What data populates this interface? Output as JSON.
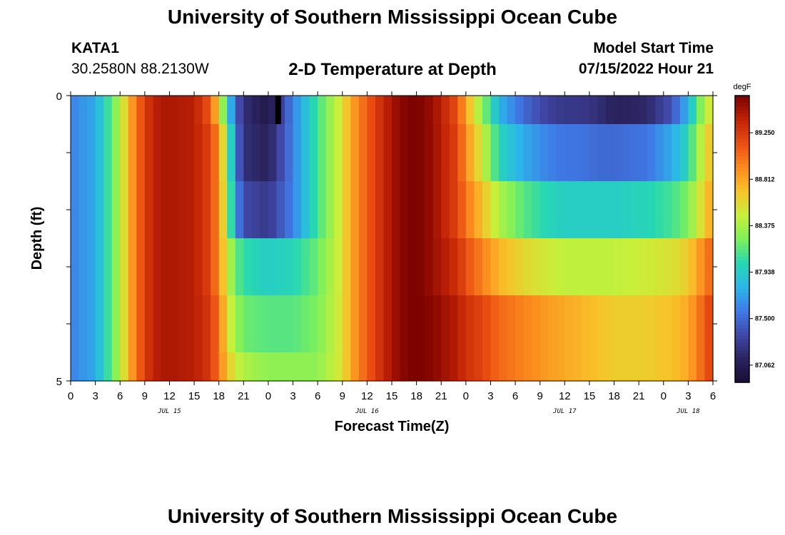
{
  "header": {
    "title": "University of Southern Mississippi Ocean Cube",
    "station": "KATA1",
    "coords": "30.2580N  88.2130W",
    "plot_title": "2-D Temperature at Depth",
    "model_start_label": "Model Start Time",
    "model_start_value": "07/15/2022 Hour 21"
  },
  "footer": {
    "title": "University of Southern Mississippi Ocean Cube"
  },
  "chart_data": {
    "type": "heatmap",
    "xlabel": "Forecast Time(Z)",
    "ylabel": "Depth (ft)",
    "x_tick_labels": [
      "0",
      "3",
      "6",
      "9",
      "12",
      "15",
      "18",
      "21",
      "0",
      "3",
      "6",
      "9",
      "12",
      "15",
      "18",
      "21",
      "0",
      "3",
      "6",
      "9",
      "12",
      "15",
      "18",
      "21",
      "0",
      "3",
      "6"
    ],
    "date_labels": [
      {
        "text": "JUL 15",
        "hour": 12
      },
      {
        "text": "JUL 16",
        "hour": 36
      },
      {
        "text": "JUL 17",
        "hour": 60
      },
      {
        "text": "JUL 18",
        "hour": 75
      }
    ],
    "x_range": [
      0,
      78
    ],
    "y_tick_labels": [
      "0",
      "5"
    ],
    "y_range": [
      0,
      5
    ],
    "depth_levels": [
      0,
      1,
      2,
      3,
      4,
      5
    ],
    "colorbar": {
      "unit": "degF",
      "ticks": [
        "89.250",
        "88.812",
        "88.375",
        "87.938",
        "87.500",
        "87.062"
      ],
      "tick_values": [
        89.25,
        88.812,
        88.375,
        87.938,
        87.5,
        87.062
      ],
      "range": [
        86.9,
        89.6
      ]
    },
    "colormap": [
      "#1a0d35",
      "#2b2460",
      "#4148a8",
      "#3f7be8",
      "#2bb7e8",
      "#27d8b2",
      "#7ff05a",
      "#c8f03a",
      "#f8c22a",
      "#fb8a1e",
      "#ea4e12",
      "#c02206",
      "#7a0000"
    ],
    "profiles": [
      {
        "depth": 0,
        "hours": [
          0,
          3,
          6,
          7,
          8,
          9,
          11,
          15,
          17,
          18,
          19,
          20,
          21,
          24,
          27,
          30,
          33,
          34,
          36,
          38,
          40,
          42,
          44,
          47,
          48,
          50,
          52,
          55,
          58,
          60,
          62,
          64,
          66,
          70,
          73,
          75,
          76,
          77,
          78
        ],
        "values": [
          87.6,
          87.75,
          88.4,
          88.75,
          89.0,
          89.25,
          89.45,
          89.4,
          89.1,
          88.6,
          88.0,
          87.5,
          87.2,
          87.0,
          87.6,
          88.1,
          88.55,
          88.8,
          89.1,
          89.35,
          89.55,
          89.6,
          89.5,
          89.15,
          88.8,
          88.3,
          87.8,
          87.5,
          87.3,
          87.25,
          87.25,
          87.2,
          87.1,
          87.15,
          87.4,
          87.8,
          88.1,
          88.4,
          88.6
        ]
      },
      {
        "depth": 1,
        "hours": [
          0,
          3,
          6,
          7,
          8,
          9,
          11,
          15,
          17,
          18,
          19,
          20,
          21,
          24,
          27,
          30,
          33,
          34,
          36,
          38,
          40,
          42,
          44,
          47,
          48,
          50,
          52,
          55,
          58,
          60,
          62,
          64,
          66,
          70,
          73,
          75,
          76,
          77,
          78
        ],
        "values": [
          87.6,
          87.75,
          88.4,
          88.75,
          89.0,
          89.25,
          89.45,
          89.4,
          89.2,
          88.9,
          88.3,
          87.6,
          87.2,
          87.1,
          87.6,
          88.1,
          88.55,
          88.8,
          89.1,
          89.35,
          89.55,
          89.6,
          89.5,
          89.2,
          88.9,
          88.5,
          88.0,
          87.75,
          87.6,
          87.55,
          87.55,
          87.5,
          87.5,
          87.55,
          87.75,
          88.0,
          88.3,
          88.55,
          88.75
        ]
      },
      {
        "depth": 2,
        "hours": [
          0,
          3,
          6,
          7,
          8,
          9,
          11,
          15,
          17,
          18,
          19,
          20,
          21,
          24,
          27,
          30,
          33,
          34,
          36,
          38,
          40,
          42,
          44,
          47,
          48,
          50,
          52,
          55,
          58,
          60,
          62,
          64,
          66,
          70,
          73,
          75,
          76,
          77,
          78
        ],
        "values": [
          87.6,
          87.75,
          88.4,
          88.75,
          89.0,
          89.25,
          89.45,
          89.4,
          89.2,
          88.9,
          88.4,
          87.7,
          87.35,
          87.25,
          87.6,
          88.1,
          88.55,
          88.8,
          89.1,
          89.35,
          89.55,
          89.6,
          89.5,
          89.2,
          89.0,
          88.7,
          88.4,
          88.15,
          88.0,
          87.95,
          87.95,
          87.95,
          87.95,
          88.0,
          88.1,
          88.25,
          88.45,
          88.65,
          88.85
        ]
      },
      {
        "depth": 3,
        "hours": [
          0,
          3,
          6,
          7,
          8,
          9,
          11,
          15,
          17,
          18,
          19,
          20,
          21,
          24,
          27,
          30,
          33,
          34,
          36,
          38,
          40,
          42,
          44,
          47,
          48,
          50,
          52,
          55,
          58,
          60,
          62,
          64,
          66,
          70,
          73,
          75,
          76,
          77,
          78
        ],
        "values": [
          87.6,
          87.75,
          88.4,
          88.75,
          89.0,
          89.25,
          89.45,
          89.4,
          89.2,
          88.9,
          88.5,
          88.2,
          88.05,
          87.95,
          88.0,
          88.2,
          88.55,
          88.8,
          89.1,
          89.35,
          89.55,
          89.6,
          89.5,
          89.3,
          89.15,
          88.95,
          88.75,
          88.6,
          88.5,
          88.45,
          88.45,
          88.45,
          88.45,
          88.5,
          88.55,
          88.65,
          88.8,
          88.95,
          89.1
        ]
      },
      {
        "depth": 4,
        "hours": [
          0,
          3,
          6,
          7,
          8,
          9,
          11,
          15,
          17,
          18,
          19,
          20,
          21,
          24,
          27,
          30,
          33,
          34,
          36,
          38,
          40,
          42,
          44,
          47,
          48,
          50,
          52,
          55,
          58,
          60,
          62,
          64,
          66,
          70,
          73,
          75,
          76,
          77,
          78
        ],
        "values": [
          87.6,
          87.75,
          88.4,
          88.75,
          89.0,
          89.25,
          89.45,
          89.4,
          89.25,
          89.0,
          88.6,
          88.35,
          88.2,
          88.15,
          88.15,
          88.25,
          88.55,
          88.8,
          89.1,
          89.35,
          89.55,
          89.6,
          89.55,
          89.4,
          89.3,
          89.2,
          89.05,
          88.95,
          88.85,
          88.8,
          88.75,
          88.7,
          88.65,
          88.65,
          88.7,
          88.8,
          88.95,
          89.1,
          89.25
        ]
      },
      {
        "depth": 5,
        "hours": [
          0,
          3,
          6,
          7,
          8,
          9,
          11,
          15,
          17,
          18,
          19,
          20,
          21,
          24,
          27,
          30,
          33,
          34,
          36,
          38,
          40,
          42,
          44,
          47,
          48,
          50,
          52,
          55,
          58,
          60,
          62,
          64,
          66,
          70,
          73,
          75,
          76,
          77,
          78
        ],
        "values": [
          87.6,
          87.75,
          88.4,
          88.75,
          89.0,
          89.25,
          89.45,
          89.4,
          89.25,
          89.0,
          88.7,
          88.5,
          88.4,
          88.3,
          88.3,
          88.3,
          88.55,
          88.8,
          89.1,
          89.35,
          89.55,
          89.6,
          89.55,
          89.4,
          89.3,
          89.2,
          89.05,
          88.95,
          88.85,
          88.8,
          88.75,
          88.7,
          88.65,
          88.65,
          88.7,
          88.8,
          88.95,
          89.1,
          89.25
        ]
      }
    ],
    "marker": {
      "hour": 25.2,
      "depth_from": 0,
      "depth_to": 0.5,
      "color": "#000000"
    }
  }
}
